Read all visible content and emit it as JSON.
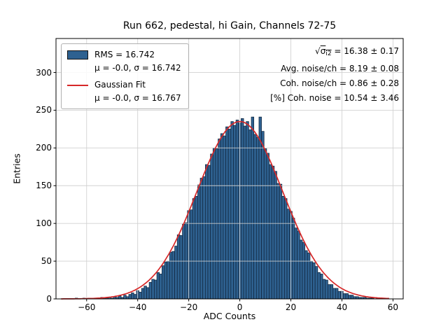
{
  "title": "Run 662, pedestal, hi Gain, Channels 72-75",
  "chart_data": {
    "type": "bar",
    "subtype": "histogram-with-gaussian-fit",
    "title": "Run 662, pedestal, hi Gain, Channels 72-75",
    "xlabel": "ADC Counts",
    "ylabel": "Entries",
    "xlim": [
      -72,
      64
    ],
    "ylim": [
      0,
      345
    ],
    "x_ticks": [
      -60,
      -40,
      -20,
      0,
      20,
      40,
      60
    ],
    "y_ticks": [
      0,
      50,
      100,
      150,
      200,
      250,
      300
    ],
    "grid": true,
    "legend_position": "upper-left",
    "histogram": {
      "bin_start": -65.5,
      "bin_width": 1,
      "counts": [
        0,
        1,
        0,
        0,
        1,
        0,
        1,
        0,
        1,
        1,
        0,
        2,
        1,
        1,
        2,
        1,
        3,
        2,
        4,
        2,
        5,
        3,
        6,
        8,
        6,
        11,
        9,
        14,
        17,
        15,
        22,
        26,
        25,
        35,
        33,
        44,
        49,
        50,
        62,
        63,
        70,
        85,
        84,
        99,
        101,
        117,
        118,
        133,
        136,
        151,
        160,
        162,
        178,
        177,
        192,
        200,
        199,
        212,
        219,
        216,
        228,
        225,
        235,
        230,
        237,
        233,
        239,
        229,
        235,
        224,
        241,
        218,
        214,
        241,
        222,
        199,
        193,
        178,
        176,
        169,
        153,
        152,
        136,
        133,
        119,
        116,
        107,
        94,
        90,
        78,
        75,
        64,
        61,
        50,
        48,
        43,
        35,
        33,
        26,
        25,
        19,
        19,
        14,
        14,
        10,
        10,
        7,
        7,
        5,
        5,
        3,
        3,
        2,
        2,
        2,
        1,
        1,
        1,
        0,
        1,
        0,
        1,
        0
      ]
    },
    "fit": {
      "type": "gaussian",
      "mu": 0,
      "sigma": 16.767,
      "amplitude": 235
    },
    "colors": {
      "bar_fill": "#2e6190",
      "bar_edge": "#10243a",
      "fit_line": "#d62728",
      "grid": "#cfcfcf",
      "spine": "#000000"
    }
  },
  "legend": {
    "rms_label": "RMS = 16.742",
    "rms_stats": "μ = -0.0, σ = 16.742",
    "fit_label": "Gaussian Fit",
    "fit_stats": "μ = -0.0, σ = 16.767"
  },
  "annotation_sqrt": {
    "radical": "√",
    "sym": "σ",
    "sub": "i",
    "sup": "2",
    "rest": " = 16.38 ± 0.17"
  },
  "annotations": [
    "Avg. noise/ch = 8.19 ± 0.08",
    "Coh. noise/ch = 0.86 ± 0.28",
    "[%] Coh. noise = 10.54 ± 3.46"
  ]
}
